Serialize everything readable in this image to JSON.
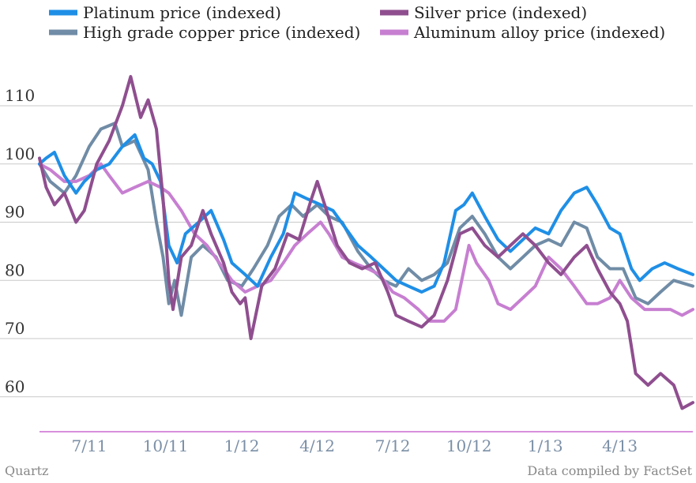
{
  "chart_data": {
    "type": "line",
    "title": "",
    "xlabel": "",
    "ylabel": "",
    "ylim": [
      54,
      118
    ],
    "yticks": [
      60,
      70,
      80,
      90,
      100,
      110
    ],
    "x_tick_labels": [
      "7/11",
      "10/11",
      "1/12",
      "4/12",
      "7/12",
      "10/12",
      "1/13",
      "4/13"
    ],
    "x_range": [
      "2011-05-02",
      "2013-06-28"
    ],
    "grid": "horizontal",
    "legend_position": "top",
    "series": [
      {
        "name": "Platinum price (indexed)",
        "color": "#1f8fe6",
        "points": [
          [
            "2011-05-02",
            100
          ],
          [
            "2011-05-10",
            101
          ],
          [
            "2011-05-20",
            102
          ],
          [
            "2011-06-01",
            98
          ],
          [
            "2011-06-15",
            95
          ],
          [
            "2011-06-25",
            97
          ],
          [
            "2011-07-10",
            99
          ],
          [
            "2011-07-25",
            100
          ],
          [
            "2011-08-10",
            103
          ],
          [
            "2011-08-25",
            105
          ],
          [
            "2011-09-05",
            101
          ],
          [
            "2011-09-15",
            100
          ],
          [
            "2011-09-25",
            97
          ],
          [
            "2011-10-05",
            86
          ],
          [
            "2011-10-15",
            83
          ],
          [
            "2011-10-25",
            88
          ],
          [
            "2011-11-10",
            90
          ],
          [
            "2011-11-25",
            92
          ],
          [
            "2011-12-10",
            87
          ],
          [
            "2011-12-20",
            83
          ],
          [
            "2012-01-05",
            81
          ],
          [
            "2012-01-20",
            79
          ],
          [
            "2012-02-05",
            84
          ],
          [
            "2012-02-20",
            88
          ],
          [
            "2012-03-05",
            95
          ],
          [
            "2012-03-20",
            94
          ],
          [
            "2012-04-05",
            93
          ],
          [
            "2012-04-20",
            92
          ],
          [
            "2012-05-05",
            89
          ],
          [
            "2012-05-20",
            86
          ],
          [
            "2012-06-05",
            84
          ],
          [
            "2012-06-20",
            82
          ],
          [
            "2012-07-05",
            80
          ],
          [
            "2012-07-20",
            79
          ],
          [
            "2012-08-05",
            78
          ],
          [
            "2012-08-20",
            79
          ],
          [
            "2012-09-01",
            83
          ],
          [
            "2012-09-15",
            92
          ],
          [
            "2012-09-25",
            93
          ],
          [
            "2012-10-05",
            95
          ],
          [
            "2012-10-20",
            91
          ],
          [
            "2012-11-05",
            87
          ],
          [
            "2012-11-20",
            85
          ],
          [
            "2012-12-05",
            87
          ],
          [
            "2012-12-20",
            89
          ],
          [
            "2013-01-05",
            88
          ],
          [
            "2013-01-20",
            92
          ],
          [
            "2013-02-05",
            95
          ],
          [
            "2013-02-20",
            96
          ],
          [
            "2013-03-05",
            93
          ],
          [
            "2013-03-20",
            89
          ],
          [
            "2013-04-01",
            88
          ],
          [
            "2013-04-15",
            82
          ],
          [
            "2013-04-25",
            80
          ],
          [
            "2013-05-10",
            82
          ],
          [
            "2013-05-25",
            83
          ],
          [
            "2013-06-10",
            82
          ],
          [
            "2013-06-28",
            81
          ]
        ]
      },
      {
        "name": "Silver price (indexed)",
        "color": "#8f4f8f",
        "points": [
          [
            "2011-05-02",
            101
          ],
          [
            "2011-05-10",
            96
          ],
          [
            "2011-05-20",
            93
          ],
          [
            "2011-06-01",
            95
          ],
          [
            "2011-06-15",
            90
          ],
          [
            "2011-06-25",
            92
          ],
          [
            "2011-07-10",
            100
          ],
          [
            "2011-07-25",
            104
          ],
          [
            "2011-08-10",
            110
          ],
          [
            "2011-08-20",
            115
          ],
          [
            "2011-09-01",
            108
          ],
          [
            "2011-09-10",
            111
          ],
          [
            "2011-09-20",
            106
          ],
          [
            "2011-09-28",
            94
          ],
          [
            "2011-10-05",
            80
          ],
          [
            "2011-10-10",
            75
          ],
          [
            "2011-10-20",
            84
          ],
          [
            "2011-11-01",
            86
          ],
          [
            "2011-11-15",
            92
          ],
          [
            "2011-11-25",
            88
          ],
          [
            "2011-12-10",
            83
          ],
          [
            "2011-12-20",
            78
          ],
          [
            "2011-12-30",
            76
          ],
          [
            "2012-01-05",
            77
          ],
          [
            "2012-01-12",
            70
          ],
          [
            "2012-01-25",
            79
          ],
          [
            "2012-02-10",
            82
          ],
          [
            "2012-02-25",
            88
          ],
          [
            "2012-03-10",
            87
          ],
          [
            "2012-03-25",
            94
          ],
          [
            "2012-04-01",
            97
          ],
          [
            "2012-04-10",
            93
          ],
          [
            "2012-04-25",
            86
          ],
          [
            "2012-05-10",
            83
          ],
          [
            "2012-05-25",
            82
          ],
          [
            "2012-06-10",
            83
          ],
          [
            "2012-06-25",
            78
          ],
          [
            "2012-07-05",
            74
          ],
          [
            "2012-07-20",
            73
          ],
          [
            "2012-08-05",
            72
          ],
          [
            "2012-08-20",
            74
          ],
          [
            "2012-09-05",
            80
          ],
          [
            "2012-09-20",
            88
          ],
          [
            "2012-10-05",
            89
          ],
          [
            "2012-10-20",
            86
          ],
          [
            "2012-11-05",
            84
          ],
          [
            "2012-11-20",
            86
          ],
          [
            "2012-12-05",
            88
          ],
          [
            "2012-12-20",
            86
          ],
          [
            "2013-01-05",
            83
          ],
          [
            "2013-01-20",
            81
          ],
          [
            "2013-02-05",
            84
          ],
          [
            "2013-02-20",
            86
          ],
          [
            "2013-03-05",
            82
          ],
          [
            "2013-03-20",
            78
          ],
          [
            "2013-04-01",
            76
          ],
          [
            "2013-04-10",
            73
          ],
          [
            "2013-04-20",
            64
          ],
          [
            "2013-05-05",
            62
          ],
          [
            "2013-05-20",
            64
          ],
          [
            "2013-06-05",
            62
          ],
          [
            "2013-06-15",
            58
          ],
          [
            "2013-06-28",
            59
          ]
        ]
      },
      {
        "name": "High grade copper price (indexed)",
        "color": "#708ca6",
        "points": [
          [
            "2011-05-02",
            100
          ],
          [
            "2011-05-15",
            97
          ],
          [
            "2011-06-01",
            95
          ],
          [
            "2011-06-15",
            98
          ],
          [
            "2011-07-01",
            103
          ],
          [
            "2011-07-15",
            106
          ],
          [
            "2011-08-01",
            107
          ],
          [
            "2011-08-10",
            103
          ],
          [
            "2011-08-25",
            104
          ],
          [
            "2011-09-10",
            99
          ],
          [
            "2011-09-20",
            90
          ],
          [
            "2011-09-28",
            84
          ],
          [
            "2011-10-05",
            76
          ],
          [
            "2011-10-12",
            80
          ],
          [
            "2011-10-20",
            74
          ],
          [
            "2011-11-01",
            84
          ],
          [
            "2011-11-15",
            86
          ],
          [
            "2011-12-01",
            84
          ],
          [
            "2011-12-15",
            80
          ],
          [
            "2012-01-01",
            79
          ],
          [
            "2012-01-15",
            82
          ],
          [
            "2012-02-01",
            86
          ],
          [
            "2012-02-15",
            91
          ],
          [
            "2012-03-01",
            93
          ],
          [
            "2012-03-15",
            91
          ],
          [
            "2012-04-01",
            93
          ],
          [
            "2012-04-15",
            91
          ],
          [
            "2012-05-01",
            90
          ],
          [
            "2012-05-20",
            85
          ],
          [
            "2012-06-05",
            82
          ],
          [
            "2012-06-20",
            80
          ],
          [
            "2012-07-05",
            79
          ],
          [
            "2012-07-20",
            82
          ],
          [
            "2012-08-05",
            80
          ],
          [
            "2012-08-20",
            81
          ],
          [
            "2012-09-05",
            83
          ],
          [
            "2012-09-20",
            89
          ],
          [
            "2012-10-05",
            91
          ],
          [
            "2012-10-20",
            88
          ],
          [
            "2012-11-05",
            84
          ],
          [
            "2012-11-20",
            82
          ],
          [
            "2012-12-05",
            84
          ],
          [
            "2012-12-20",
            86
          ],
          [
            "2013-01-05",
            87
          ],
          [
            "2013-01-20",
            86
          ],
          [
            "2013-02-05",
            90
          ],
          [
            "2013-02-20",
            89
          ],
          [
            "2013-03-05",
            84
          ],
          [
            "2013-03-20",
            82
          ],
          [
            "2013-04-05",
            82
          ],
          [
            "2013-04-20",
            77
          ],
          [
            "2013-05-05",
            76
          ],
          [
            "2013-05-20",
            78
          ],
          [
            "2013-06-05",
            80
          ],
          [
            "2013-06-28",
            79
          ]
        ]
      },
      {
        "name": "Aluminum alloy price (indexed)",
        "color": "#c77fd1",
        "points": [
          [
            "2011-05-02",
            100
          ],
          [
            "2011-05-15",
            99
          ],
          [
            "2011-06-01",
            97
          ],
          [
            "2011-06-15",
            97
          ],
          [
            "2011-07-01",
            98
          ],
          [
            "2011-07-15",
            100
          ],
          [
            "2011-07-25",
            98
          ],
          [
            "2011-08-10",
            95
          ],
          [
            "2011-08-25",
            96
          ],
          [
            "2011-09-10",
            97
          ],
          [
            "2011-09-25",
            96
          ],
          [
            "2011-10-05",
            95
          ],
          [
            "2011-10-20",
            92
          ],
          [
            "2011-11-05",
            88
          ],
          [
            "2011-11-20",
            86
          ],
          [
            "2011-12-05",
            83
          ],
          [
            "2011-12-20",
            80
          ],
          [
            "2012-01-05",
            78
          ],
          [
            "2012-01-20",
            79
          ],
          [
            "2012-02-05",
            80
          ],
          [
            "2012-02-20",
            83
          ],
          [
            "2012-03-05",
            86
          ],
          [
            "2012-03-20",
            88
          ],
          [
            "2012-04-05",
            90
          ],
          [
            "2012-04-15",
            88
          ],
          [
            "2012-05-01",
            84
          ],
          [
            "2012-05-15",
            83
          ],
          [
            "2012-06-01",
            82
          ],
          [
            "2012-06-15",
            81
          ],
          [
            "2012-07-01",
            78
          ],
          [
            "2012-07-15",
            77
          ],
          [
            "2012-08-01",
            75
          ],
          [
            "2012-08-15",
            73
          ],
          [
            "2012-09-01",
            73
          ],
          [
            "2012-09-15",
            75
          ],
          [
            "2012-10-01",
            86
          ],
          [
            "2012-10-10",
            83
          ],
          [
            "2012-10-25",
            80
          ],
          [
            "2012-11-05",
            76
          ],
          [
            "2012-11-20",
            75
          ],
          [
            "2012-12-05",
            77
          ],
          [
            "2012-12-20",
            79
          ],
          [
            "2013-01-05",
            84
          ],
          [
            "2013-01-20",
            82
          ],
          [
            "2013-02-05",
            79
          ],
          [
            "2013-02-20",
            76
          ],
          [
            "2013-03-05",
            76
          ],
          [
            "2013-03-20",
            77
          ],
          [
            "2013-04-01",
            80
          ],
          [
            "2013-04-15",
            77
          ],
          [
            "2013-05-01",
            75
          ],
          [
            "2013-05-15",
            75
          ],
          [
            "2013-06-01",
            75
          ],
          [
            "2013-06-15",
            74
          ],
          [
            "2013-06-28",
            75
          ]
        ]
      }
    ]
  },
  "footer": {
    "left": "Quartz",
    "right": "Data compiled by FactSet"
  }
}
